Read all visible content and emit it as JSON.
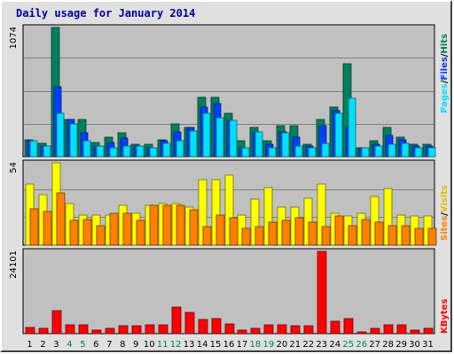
{
  "title": "Daily usage for January 2014",
  "colors": {
    "hits": "#00805C",
    "files": "#0040FF",
    "pages": "#00E0FF",
    "visits": "#FFFF00",
    "sites": "#FF8000",
    "kbytes": "#FF0000",
    "plot_bg": "#C0C0C0",
    "frame_bg": "#E0E0E0",
    "weekend_label": "#00805C",
    "weekday_label": "#000000"
  },
  "chart_data": [
    {
      "type": "bar",
      "panel": "hits-files-pages",
      "y_max_label": "1074",
      "ylim": [
        0,
        1074
      ],
      "legend": [
        "Pages",
        "Files",
        "Hits"
      ],
      "categories": [
        "1",
        "2",
        "3",
        "4",
        "5",
        "6",
        "7",
        "8",
        "9",
        "10",
        "11",
        "12",
        "13",
        "14",
        "15",
        "16",
        "17",
        "18",
        "19",
        "20",
        "21",
        "22",
        "23",
        "24",
        "25",
        "26",
        "27",
        "28",
        "29",
        "30",
        "31"
      ],
      "series": [
        {
          "name": "Hits",
          "values": [
            143,
            107,
            1074,
            312,
            312,
            120,
            161,
            197,
            101,
            101,
            143,
            275,
            240,
            493,
            493,
            358,
            131,
            240,
            131,
            260,
            260,
            101,
            312,
            410,
            776,
            71,
            131,
            240,
            161,
            101,
            101
          ]
        },
        {
          "name": "Files",
          "values": [
            131,
            89,
            582,
            312,
            197,
            89,
            116,
            154,
            89,
            77,
            131,
            208,
            240,
            410,
            439,
            299,
            71,
            208,
            101,
            208,
            160,
            89,
            259,
            382,
            240,
            71,
            101,
            178,
            137,
            89,
            89
          ]
        },
        {
          "name": "Pages",
          "values": [
            131,
            89,
            359,
            275,
            131,
            89,
            77,
            89,
            89,
            77,
            107,
            131,
            214,
            359,
            327,
            299,
            71,
            208,
            77,
            197,
            89,
            77,
            107,
            359,
            488,
            71,
            89,
            101,
            107,
            71,
            77
          ]
        }
      ],
      "grid": true
    },
    {
      "type": "bar",
      "panel": "visits-sites",
      "y_max_label": "54",
      "ylim": [
        0,
        54
      ],
      "legend": [
        "Sites",
        "Visits"
      ],
      "categories": [
        "1",
        "2",
        "3",
        "4",
        "5",
        "6",
        "7",
        "8",
        "9",
        "10",
        "11",
        "12",
        "13",
        "14",
        "15",
        "16",
        "17",
        "18",
        "19",
        "20",
        "21",
        "22",
        "23",
        "24",
        "25",
        "26",
        "27",
        "28",
        "29",
        "30",
        "31"
      ],
      "series": [
        {
          "name": "Visits",
          "values": [
            40,
            33,
            54,
            27,
            20,
            20,
            20,
            26,
            21,
            26,
            27,
            27,
            25,
            43,
            43,
            46,
            20,
            30,
            38,
            25,
            25,
            31,
            40,
            21,
            19,
            21,
            32,
            37,
            20,
            19,
            19
          ]
        },
        {
          "name": "Sites",
          "values": [
            24,
            22,
            34,
            16,
            17,
            13,
            21,
            21,
            16,
            26,
            26,
            26,
            23,
            12,
            20,
            18,
            11,
            12,
            15,
            16,
            18,
            15,
            12,
            19,
            13,
            17,
            15,
            13,
            13,
            11,
            11
          ]
        }
      ],
      "grid": true
    },
    {
      "type": "bar",
      "panel": "kbytes",
      "y_max_label": "24101",
      "ylim": [
        0,
        24101
      ],
      "legend": [
        "KBytes"
      ],
      "categories": [
        "1",
        "2",
        "3",
        "4",
        "5",
        "6",
        "7",
        "8",
        "9",
        "10",
        "11",
        "12",
        "13",
        "14",
        "15",
        "16",
        "17",
        "18",
        "19",
        "20",
        "21",
        "22",
        "23",
        "24",
        "25",
        "26",
        "27",
        "28",
        "29",
        "30",
        "31"
      ],
      "series": [
        {
          "name": "KBytes",
          "values": [
            1851,
            1481,
            6665,
            2592,
            2592,
            1111,
            1481,
            2222,
            2222,
            2592,
            2592,
            7776,
            6295,
            4073,
            4444,
            2962,
            1111,
            1481,
            2592,
            2592,
            2222,
            2222,
            24101,
            3703,
            4444,
            555,
            1481,
            2592,
            2592,
            1111,
            1481
          ]
        }
      ],
      "grid": false
    }
  ],
  "x_axis": {
    "labels": [
      "1",
      "2",
      "3",
      "4",
      "5",
      "6",
      "7",
      "8",
      "9",
      "10",
      "11",
      "12",
      "13",
      "14",
      "15",
      "16",
      "17",
      "18",
      "19",
      "20",
      "21",
      "22",
      "23",
      "24",
      "25",
      "26",
      "27",
      "28",
      "29",
      "30",
      "31"
    ],
    "weekend_days": [
      "4",
      "5",
      "11",
      "12",
      "18",
      "19",
      "25",
      "26"
    ]
  }
}
